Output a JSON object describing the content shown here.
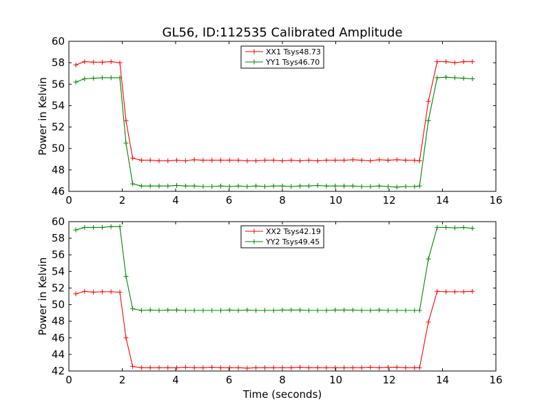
{
  "figure_title": "GL56, ID:112535 Calibrated Amplitude",
  "chart_data": [
    {
      "type": "line",
      "title": "GL56, ID:112535 Calibrated Amplitude",
      "xlabel": "",
      "ylabel": "Power in Kelvin",
      "xlim": [
        0,
        16
      ],
      "ylim": [
        46,
        60
      ],
      "xticks": [
        "0",
        "2",
        "4",
        "6",
        "8",
        "10",
        "12",
        "14",
        "16"
      ],
      "yticks": [
        "46",
        "48",
        "50",
        "52",
        "54",
        "56",
        "58",
        "60"
      ],
      "grid": false,
      "legend_position": "top-center",
      "x": [
        0.26,
        0.59,
        0.92,
        1.25,
        1.58,
        1.91,
        2.14,
        2.39,
        2.72,
        3.05,
        3.38,
        3.71,
        4.04,
        4.37,
        4.7,
        5.03,
        5.36,
        5.69,
        6.02,
        6.35,
        6.68,
        7.01,
        7.34,
        7.67,
        8.0,
        8.33,
        8.66,
        8.99,
        9.32,
        9.65,
        9.98,
        10.31,
        10.64,
        10.97,
        11.3,
        11.63,
        11.96,
        12.29,
        12.62,
        12.95,
        13.14,
        13.47,
        13.8,
        14.13,
        14.46,
        14.79,
        15.12
      ],
      "series": [
        {
          "name": "XX1 Tsys48.73",
          "color": "#ff0000",
          "values": [
            57.8,
            58.1,
            58.05,
            58.05,
            58.1,
            58.0,
            52.6,
            49.1,
            48.9,
            48.9,
            48.85,
            48.85,
            48.9,
            48.85,
            48.95,
            48.9,
            48.9,
            48.9,
            48.9,
            48.9,
            48.85,
            48.85,
            48.9,
            48.9,
            48.85,
            48.9,
            48.85,
            48.9,
            48.85,
            48.9,
            48.9,
            48.9,
            48.95,
            48.9,
            48.85,
            48.95,
            48.9,
            48.95,
            48.9,
            48.9,
            48.85,
            54.4,
            58.1,
            58.1,
            58.0,
            58.1,
            58.1
          ]
        },
        {
          "name": "YY1 Tsys46.70",
          "color": "#008000",
          "values": [
            56.2,
            56.5,
            56.55,
            56.6,
            56.6,
            56.6,
            50.5,
            46.7,
            46.5,
            46.5,
            46.5,
            46.5,
            46.55,
            46.5,
            46.5,
            46.45,
            46.45,
            46.5,
            46.45,
            46.5,
            46.45,
            46.5,
            46.45,
            46.5,
            46.5,
            46.45,
            46.5,
            46.5,
            46.55,
            46.5,
            46.5,
            46.5,
            46.5,
            46.45,
            46.45,
            46.5,
            46.45,
            46.4,
            46.45,
            46.45,
            46.5,
            52.6,
            56.6,
            56.65,
            56.6,
            56.55,
            56.5
          ]
        }
      ]
    },
    {
      "type": "line",
      "title": "",
      "xlabel": "Time (seconds)",
      "ylabel": "Power in Kelvin",
      "xlim": [
        0,
        16
      ],
      "ylim": [
        42,
        60
      ],
      "xticks": [
        "0",
        "2",
        "4",
        "6",
        "8",
        "10",
        "12",
        "14",
        "16"
      ],
      "yticks": [
        "42",
        "44",
        "46",
        "48",
        "50",
        "52",
        "54",
        "56",
        "58",
        "60"
      ],
      "grid": false,
      "legend_position": "top-center",
      "x": [
        0.26,
        0.59,
        0.92,
        1.25,
        1.58,
        1.91,
        2.14,
        2.39,
        2.72,
        3.05,
        3.38,
        3.71,
        4.04,
        4.37,
        4.7,
        5.03,
        5.36,
        5.69,
        6.02,
        6.35,
        6.68,
        7.01,
        7.34,
        7.67,
        8.0,
        8.33,
        8.66,
        8.99,
        9.32,
        9.65,
        9.98,
        10.31,
        10.64,
        10.97,
        11.3,
        11.63,
        11.96,
        12.29,
        12.62,
        12.95,
        13.14,
        13.47,
        13.8,
        14.13,
        14.46,
        14.79,
        15.12
      ],
      "series": [
        {
          "name": "XX2 Tsys42.19",
          "color": "#ff0000",
          "values": [
            51.3,
            51.6,
            51.5,
            51.55,
            51.55,
            51.5,
            46.0,
            42.55,
            42.4,
            42.4,
            42.4,
            42.4,
            42.4,
            42.45,
            42.4,
            42.4,
            42.45,
            42.4,
            42.4,
            42.4,
            42.35,
            42.4,
            42.4,
            42.4,
            42.4,
            42.4,
            42.45,
            42.4,
            42.4,
            42.4,
            42.4,
            42.4,
            42.4,
            42.4,
            42.45,
            42.4,
            42.45,
            42.45,
            42.4,
            42.4,
            42.4,
            47.9,
            51.6,
            51.55,
            51.55,
            51.55,
            51.6
          ]
        },
        {
          "name": "YY2 Tsys49.45",
          "color": "#008000",
          "values": [
            59.0,
            59.3,
            59.3,
            59.3,
            59.4,
            59.4,
            53.4,
            49.5,
            49.3,
            49.35,
            49.3,
            49.35,
            49.35,
            49.3,
            49.3,
            49.3,
            49.3,
            49.3,
            49.35,
            49.3,
            49.35,
            49.3,
            49.3,
            49.3,
            49.35,
            49.35,
            49.35,
            49.3,
            49.3,
            49.3,
            49.35,
            49.35,
            49.35,
            49.3,
            49.3,
            49.35,
            49.3,
            49.3,
            49.3,
            49.3,
            49.3,
            55.5,
            59.3,
            59.3,
            59.25,
            59.3,
            59.2
          ]
        }
      ]
    }
  ]
}
